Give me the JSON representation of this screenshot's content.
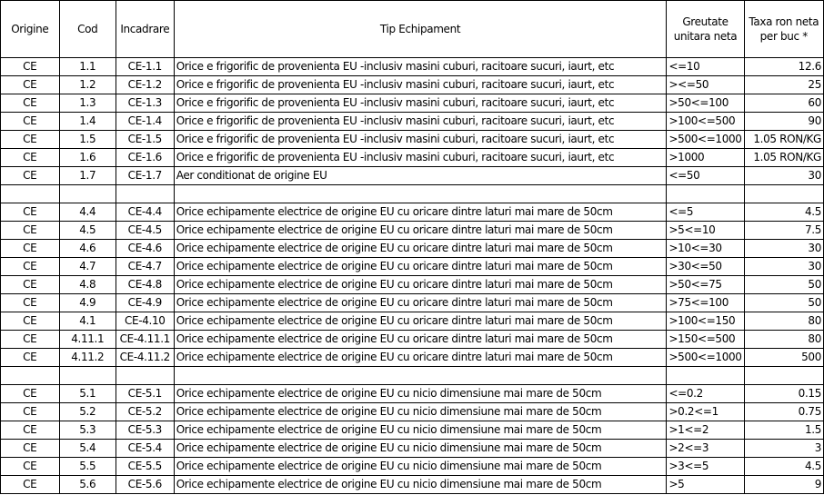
{
  "headers": [
    "Origine",
    "Cod",
    "Incadrare",
    "Tip Echipament",
    "Greutate unitara neta",
    "Taxa ron neta per buc *"
  ],
  "rows": [
    [
      "CE",
      "1.1",
      "CE-1.1",
      "Orice e frigorific de provenienta EU -inclusiv masini cuburi, racitoare sucuri, iaurt, etc",
      "<=10",
      "12.6"
    ],
    [
      "CE",
      "1.2",
      "CE-1.2",
      "Orice e frigorific de provenienta EU -inclusiv masini cuburi, racitoare sucuri, iaurt, etc",
      "><=50",
      "25"
    ],
    [
      "CE",
      "1.3",
      "CE-1.3",
      "Orice e frigorific de provenienta EU -inclusiv masini cuburi, racitoare sucuri, iaurt, etc",
      ">50<=100",
      "60"
    ],
    [
      "CE",
      "1.4",
      "CE-1.4",
      "Orice e frigorific de provenienta EU -inclusiv masini cuburi, racitoare sucuri, iaurt, etc",
      ">100<=500",
      "90"
    ],
    [
      "CE",
      "1.5",
      "CE-1.5",
      "Orice e frigorific de provenienta EU -inclusiv masini cuburi, racitoare sucuri, iaurt, etc",
      ">500<=1000",
      "1.05 RON/KG"
    ],
    [
      "CE",
      "1.6",
      "CE-1.6",
      "Orice e frigorific de provenienta EU -inclusiv masini cuburi, racitoare sucuri, iaurt, etc",
      ">1000",
      "1.05 RON/KG"
    ],
    [
      "CE",
      "1.7",
      "CE-1.7",
      "Aer conditionat de origine EU",
      "<=50",
      "30"
    ],
    [
      "",
      "",
      "",
      "",
      "",
      ""
    ],
    [
      "CE",
      "4.4",
      "CE-4.4",
      "Orice echipamente electrice de origine EU cu oricare dintre laturi mai mare de 50cm",
      "<=5",
      "4.5"
    ],
    [
      "CE",
      "4.5",
      "CE-4.5",
      "Orice echipamente electrice de origine EU cu oricare dintre laturi mai mare de 50cm",
      ">5<=10",
      "7.5"
    ],
    [
      "CE",
      "4.6",
      "CE-4.6",
      "Orice echipamente electrice de origine EU cu oricare dintre laturi mai mare de 50cm",
      ">10<=30",
      "30"
    ],
    [
      "CE",
      "4.7",
      "CE-4.7",
      "Orice echipamente electrice de origine EU cu oricare dintre laturi mai mare de 50cm",
      ">30<=50",
      "30"
    ],
    [
      "CE",
      "4.8",
      "CE-4.8",
      "Orice echipamente electrice de origine EU cu oricare dintre laturi mai mare de 50cm",
      ">50<=75",
      "50"
    ],
    [
      "CE",
      "4.9",
      "CE-4.9",
      "Orice echipamente electrice de origine EU cu oricare dintre laturi mai mare de 50cm",
      ">75<=100",
      "50"
    ],
    [
      "CE",
      "4.1",
      "CE-4.10",
      "Orice echipamente electrice de origine EU cu oricare dintre laturi mai mare de 50cm",
      ">100<=150",
      "80"
    ],
    [
      "CE",
      "4.11.1",
      "CE-4.11.1",
      "Orice echipamente electrice de origine EU cu oricare dintre laturi mai mare de 50cm",
      ">150<=500",
      "80"
    ],
    [
      "CE",
      "4.11.2",
      "CE-4.11.2",
      "Orice echipamente electrice de origine EU cu oricare dintre laturi mai mare de 50cm",
      ">500<=1000",
      "500"
    ],
    [
      "",
      "",
      "",
      "",
      "",
      ""
    ],
    [
      "CE",
      "5.1",
      "CE-5.1",
      "Orice echipamente electrice de origine EU cu nicio dimensiune mai mare de 50cm",
      "<=0.2",
      "0.15"
    ],
    [
      "CE",
      "5.2",
      "CE-5.2",
      "Orice echipamente electrice de origine EU cu nicio dimensiune mai mare de 50cm",
      ">0.2<=1",
      "0.75"
    ],
    [
      "CE",
      "5.3",
      "CE-5.3",
      "Orice echipamente electrice de origine EU cu nicio dimensiune mai mare de 50cm",
      ">1<=2",
      "1.5"
    ],
    [
      "CE",
      "5.4",
      "CE-5.4",
      "Orice echipamente electrice de origine EU cu nicio dimensiune mai mare de 50cm",
      ">2<=3",
      "3"
    ],
    [
      "CE",
      "5.5",
      "CE-5.5",
      "Orice echipamente electrice de origine EU cu nicio dimensiune mai mare de 50cm",
      ">3<=5",
      "4.5"
    ],
    [
      "CE",
      "5.6",
      "CE-5.6",
      "Orice echipamente electrice de origine EU cu nicio dimensiune mai mare de 50cm",
      ">5",
      "9"
    ]
  ]
}
